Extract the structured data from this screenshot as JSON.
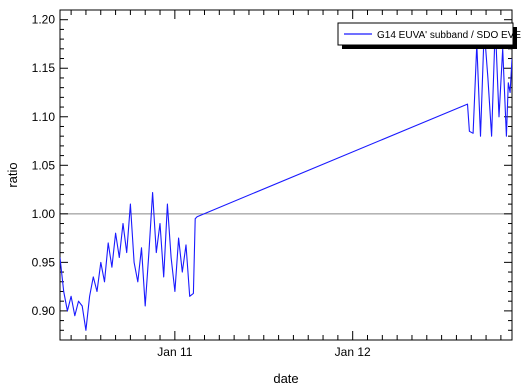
{
  "chart_data": {
    "type": "line",
    "title": "",
    "xlabel": "date",
    "ylabel": "ratio",
    "x_axis": {
      "type": "date",
      "range": [
        "2010-01-10T08:30",
        "2010-01-12T21:30"
      ]
    },
    "ylim": [
      0.87,
      1.21
    ],
    "yticks": [
      "0.90",
      "0.95",
      "1.00",
      "1.05",
      "1.10",
      "1.15",
      "1.20"
    ],
    "xticks": [
      {
        "label": "Jan 11",
        "value": "2010-01-11T00:00"
      },
      {
        "label": "Jan 12",
        "value": "2010-01-12T00:00"
      }
    ],
    "reference_line": {
      "y": 1.0,
      "color": "#888888"
    },
    "grid": false,
    "legend": {
      "position": "top-right",
      "entries": [
        "G14 EUVA' subband / SDO EVE"
      ]
    },
    "series": [
      {
        "name": "G14 EUVA' subband / SDO EVE",
        "color": "#1a1aff",
        "points": [
          [
            "2010-01-10T08:30",
            0.955
          ],
          [
            "2010-01-10T09:00",
            0.92
          ],
          [
            "2010-01-10T09:30",
            0.9
          ],
          [
            "2010-01-10T10:00",
            0.915
          ],
          [
            "2010-01-10T10:30",
            0.895
          ],
          [
            "2010-01-10T11:00",
            0.91
          ],
          [
            "2010-01-10T11:30",
            0.905
          ],
          [
            "2010-01-10T12:00",
            0.88
          ],
          [
            "2010-01-10T12:30",
            0.915
          ],
          [
            "2010-01-10T13:00",
            0.935
          ],
          [
            "2010-01-10T13:30",
            0.92
          ],
          [
            "2010-01-10T14:00",
            0.95
          ],
          [
            "2010-01-10T14:30",
            0.93
          ],
          [
            "2010-01-10T15:00",
            0.97
          ],
          [
            "2010-01-10T15:30",
            0.945
          ],
          [
            "2010-01-10T16:00",
            0.98
          ],
          [
            "2010-01-10T16:30",
            0.955
          ],
          [
            "2010-01-10T17:00",
            0.99
          ],
          [
            "2010-01-10T17:30",
            0.96
          ],
          [
            "2010-01-10T18:00",
            1.01
          ],
          [
            "2010-01-10T18:30",
            0.95
          ],
          [
            "2010-01-10T19:00",
            0.93
          ],
          [
            "2010-01-10T19:30",
            0.965
          ],
          [
            "2010-01-10T20:00",
            0.905
          ],
          [
            "2010-01-10T20:30",
            0.96
          ],
          [
            "2010-01-10T21:00",
            1.022
          ],
          [
            "2010-01-10T21:30",
            0.96
          ],
          [
            "2010-01-10T22:00",
            0.99
          ],
          [
            "2010-01-10T22:30",
            0.935
          ],
          [
            "2010-01-10T23:00",
            1.01
          ],
          [
            "2010-01-10T23:30",
            0.955
          ],
          [
            "2010-01-11T00:00",
            0.92
          ],
          [
            "2010-01-11T00:30",
            0.975
          ],
          [
            "2010-01-11T01:00",
            0.94
          ],
          [
            "2010-01-11T01:30",
            0.968
          ],
          [
            "2010-01-11T02:00",
            0.915
          ],
          [
            "2010-01-11T02:30",
            0.918
          ],
          [
            "2010-01-11T02:45",
            0.995
          ],
          [
            "2010-01-11T03:00",
            0.997
          ],
          [
            "2010-01-12T15:30",
            1.113
          ],
          [
            "2010-01-12T15:45",
            1.085
          ],
          [
            "2010-01-12T16:15",
            1.083
          ],
          [
            "2010-01-12T16:45",
            1.175
          ],
          [
            "2010-01-12T17:15",
            1.08
          ],
          [
            "2010-01-12T17:45",
            1.19
          ],
          [
            "2010-01-12T18:15",
            1.14
          ],
          [
            "2010-01-12T18:45",
            1.08
          ],
          [
            "2010-01-12T19:15",
            1.195
          ],
          [
            "2010-01-12T19:45",
            1.1
          ],
          [
            "2010-01-12T20:15",
            1.17
          ],
          [
            "2010-01-12T20:45",
            1.08
          ],
          [
            "2010-01-12T21:00",
            1.135
          ],
          [
            "2010-01-12T21:15",
            1.125
          ],
          [
            "2010-01-12T21:30",
            1.16
          ]
        ]
      }
    ]
  }
}
